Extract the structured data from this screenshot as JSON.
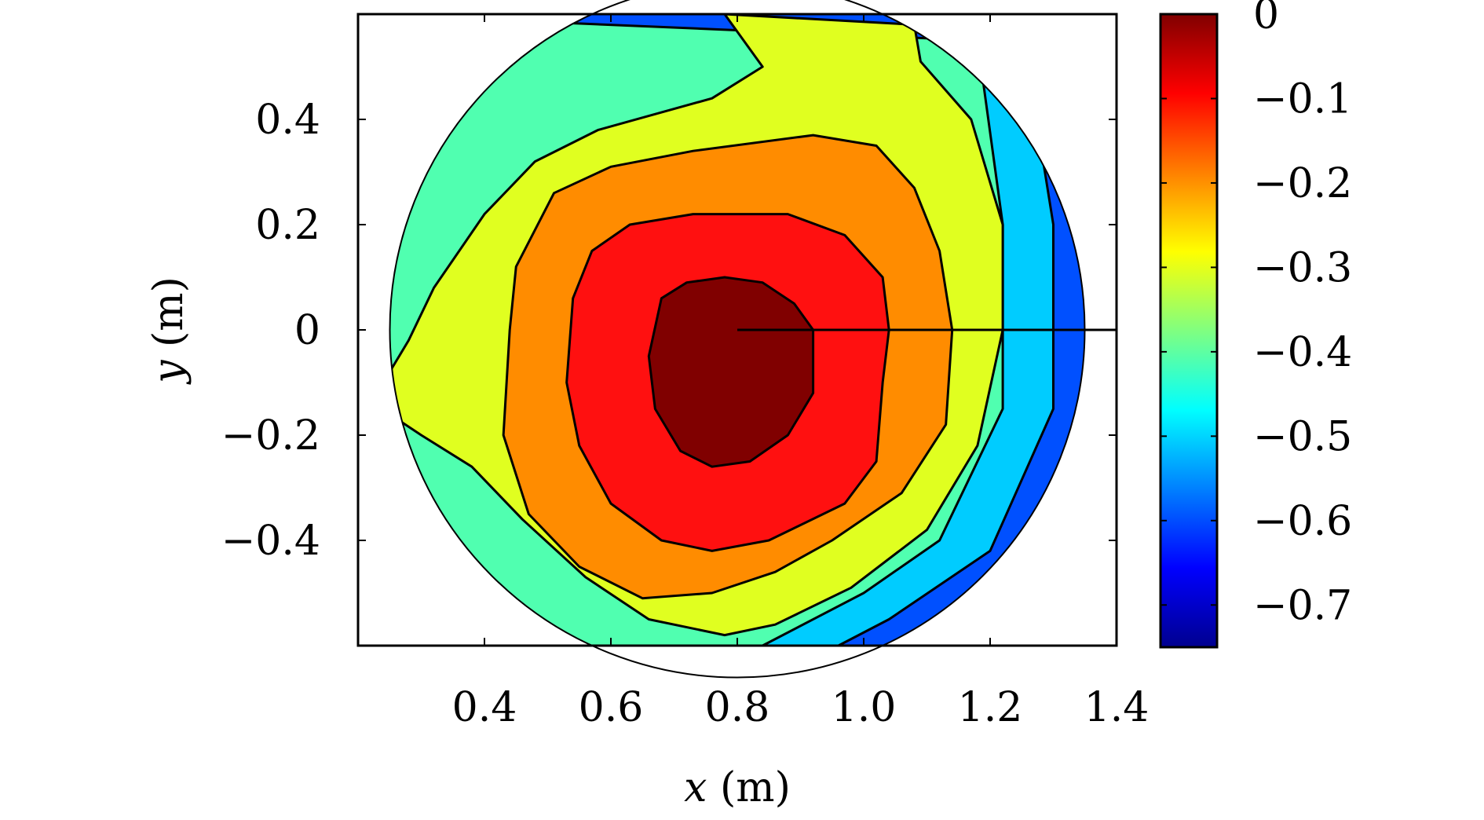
{
  "chart_data": {
    "type": "contour",
    "title": "",
    "xlabel": {
      "var": "x",
      "unit": " (m)"
    },
    "ylabel": {
      "var": "y",
      "unit": " (m)"
    },
    "xlim": [
      0.2,
      1.4
    ],
    "ylim": [
      -0.6,
      0.6
    ],
    "xticks": [
      {
        "value": 0.4,
        "label": "0.4"
      },
      {
        "value": 0.6,
        "label": "0.6"
      },
      {
        "value": 0.8,
        "label": "0.8"
      },
      {
        "value": 1.0,
        "label": "1.0"
      },
      {
        "value": 1.2,
        "label": "1.2"
      },
      {
        "value": 1.4,
        "label": "1.4"
      }
    ],
    "yticks": [
      {
        "value": 0.4,
        "label": "0.4"
      },
      {
        "value": 0.2,
        "label": "0.2"
      },
      {
        "value": 0,
        "label": "0"
      },
      {
        "value": -0.2,
        "label": "−0.2"
      },
      {
        "value": -0.4,
        "label": "−0.4"
      }
    ],
    "colorbar": {
      "range": [
        -0.75,
        0
      ],
      "ticks": [
        {
          "value": 0,
          "label": "0"
        },
        {
          "value": -0.1,
          "label": "−0.1"
        },
        {
          "value": -0.2,
          "label": "−0.2"
        },
        {
          "value": -0.3,
          "label": "−0.3"
        },
        {
          "value": -0.4,
          "label": "−0.4"
        },
        {
          "value": -0.5,
          "label": "−0.5"
        },
        {
          "value": -0.6,
          "label": "−0.6"
        },
        {
          "value": -0.7,
          "label": "−0.7"
        }
      ],
      "colormap": [
        "#00008f",
        "#0000ff",
        "#0080ff",
        "#00ffff",
        "#80ff80",
        "#ffff00",
        "#ff8000",
        "#ff0000",
        "#800000"
      ]
    },
    "domain": {
      "shape": "circle",
      "center": [
        0.8,
        0.0
      ],
      "radius": 0.6
    },
    "center_line": {
      "from": [
        0.8,
        0.0
      ],
      "to": [
        1.4,
        0.0
      ]
    },
    "levels": [
      {
        "value": -0.8,
        "color": "#00008f",
        "points": [
          [
            0.2,
            0.6
          ],
          [
            1.4,
            0.6
          ],
          [
            1.4,
            -0.6
          ],
          [
            0.2,
            -0.6
          ]
        ]
      },
      {
        "value": -0.7,
        "color": "#0000c8",
        "points": [
          [
            0.2,
            0.6
          ],
          [
            1.34,
            0.6
          ],
          [
            1.4,
            -0.1
          ],
          [
            1.36,
            -0.4
          ],
          [
            1.28,
            -0.55
          ],
          [
            1.2,
            -0.6
          ],
          [
            0.2,
            -0.6
          ]
        ]
      },
      {
        "value": -0.6,
        "color": "#0050ff",
        "points": [
          [
            0.2,
            0.6
          ],
          [
            1.3,
            0.6
          ],
          [
            1.38,
            0.2
          ],
          [
            1.38,
            -0.1
          ],
          [
            1.33,
            -0.35
          ],
          [
            1.2,
            -0.53
          ],
          [
            1.08,
            -0.6
          ],
          [
            0.2,
            -0.6
          ]
        ]
      },
      {
        "value": -0.5,
        "color": "#00ccff",
        "points": [
          [
            0.2,
            0.6
          ],
          [
            1.26,
            0.5
          ],
          [
            1.3,
            0.2
          ],
          [
            1.3,
            -0.15
          ],
          [
            1.2,
            -0.42
          ],
          [
            1.04,
            -0.55
          ],
          [
            0.96,
            -0.6
          ],
          [
            0.2,
            -0.6
          ]
        ]
      },
      {
        "value": -0.4,
        "color": "#50ffb0",
        "points": [
          [
            0.2,
            0.6
          ],
          [
            1.18,
            0.55
          ],
          [
            1.22,
            0.2
          ],
          [
            1.22,
            -0.15
          ],
          [
            1.12,
            -0.4
          ],
          [
            1.0,
            -0.5
          ],
          [
            0.84,
            -0.6
          ],
          [
            0.2,
            -0.6
          ]
        ]
      },
      {
        "value": -0.3,
        "color": "#e0ff20",
        "points": [
          [
            0.78,
            0.6
          ],
          [
            0.84,
            0.5
          ],
          [
            0.76,
            0.44
          ],
          [
            0.58,
            0.38
          ],
          [
            0.48,
            0.32
          ],
          [
            0.4,
            0.22
          ],
          [
            0.32,
            0.08
          ],
          [
            0.28,
            -0.02
          ],
          [
            0.24,
            -0.1
          ],
          [
            0.25,
            -0.16
          ],
          [
            0.3,
            -0.2
          ],
          [
            0.38,
            -0.26
          ],
          [
            0.46,
            -0.36
          ],
          [
            0.56,
            -0.47
          ],
          [
            0.66,
            -0.55
          ],
          [
            0.78,
            -0.58
          ],
          [
            0.86,
            -0.56
          ],
          [
            0.98,
            -0.49
          ],
          [
            1.1,
            -0.38
          ],
          [
            1.18,
            -0.22
          ],
          [
            1.22,
            0.0
          ],
          [
            1.22,
            0.2
          ],
          [
            1.17,
            0.4
          ],
          [
            1.09,
            0.51
          ],
          [
            1.08,
            0.58
          ]
        ]
      },
      {
        "value": -0.2,
        "color": "#ff8c00",
        "points": [
          [
            0.45,
            0.12
          ],
          [
            0.51,
            0.26
          ],
          [
            0.6,
            0.31
          ],
          [
            0.73,
            0.34
          ],
          [
            0.92,
            0.37
          ],
          [
            1.02,
            0.35
          ],
          [
            1.08,
            0.27
          ],
          [
            1.12,
            0.15
          ],
          [
            1.14,
            0.0
          ],
          [
            1.13,
            -0.18
          ],
          [
            1.06,
            -0.31
          ],
          [
            0.95,
            -0.4
          ],
          [
            0.86,
            -0.46
          ],
          [
            0.76,
            -0.5
          ],
          [
            0.65,
            -0.51
          ],
          [
            0.55,
            -0.45
          ],
          [
            0.47,
            -0.35
          ],
          [
            0.43,
            -0.2
          ],
          [
            0.44,
            0.0
          ]
        ]
      },
      {
        "value": -0.1,
        "color": "#ff1010",
        "points": [
          [
            0.54,
            0.06
          ],
          [
            0.57,
            0.15
          ],
          [
            0.63,
            0.2
          ],
          [
            0.73,
            0.22
          ],
          [
            0.88,
            0.22
          ],
          [
            0.97,
            0.18
          ],
          [
            1.03,
            0.1
          ],
          [
            1.04,
            0.0
          ],
          [
            1.03,
            -0.1
          ],
          [
            1.02,
            -0.25
          ],
          [
            0.97,
            -0.33
          ],
          [
            0.85,
            -0.4
          ],
          [
            0.76,
            -0.42
          ],
          [
            0.68,
            -0.4
          ],
          [
            0.6,
            -0.33
          ],
          [
            0.55,
            -0.22
          ],
          [
            0.53,
            -0.1
          ]
        ]
      },
      {
        "value": 0.0,
        "color": "#800000",
        "points": [
          [
            0.68,
            0.06
          ],
          [
            0.72,
            0.09
          ],
          [
            0.78,
            0.1
          ],
          [
            0.84,
            0.09
          ],
          [
            0.89,
            0.05
          ],
          [
            0.92,
            0.0
          ],
          [
            0.92,
            -0.12
          ],
          [
            0.88,
            -0.2
          ],
          [
            0.82,
            -0.25
          ],
          [
            0.76,
            -0.26
          ],
          [
            0.71,
            -0.23
          ],
          [
            0.67,
            -0.15
          ],
          [
            0.66,
            -0.05
          ]
        ]
      }
    ]
  }
}
